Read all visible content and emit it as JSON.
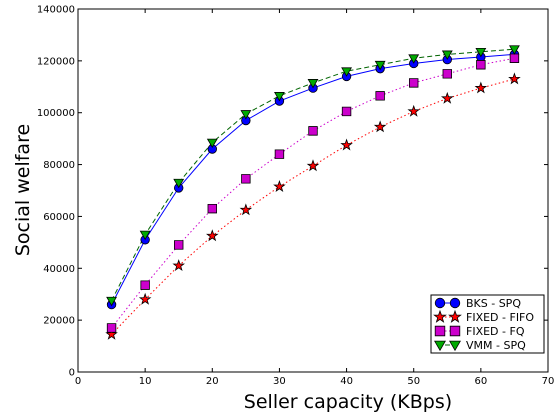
{
  "chart_data": {
    "type": "line",
    "title": "",
    "xlabel": "Seller capacity (KBps)",
    "ylabel": "Social welfare",
    "xlim": [
      0,
      70
    ],
    "ylim": [
      0,
      140000
    ],
    "xticks": [
      0,
      10,
      20,
      30,
      40,
      50,
      60,
      70
    ],
    "yticks": [
      0,
      20000,
      40000,
      60000,
      80000,
      100000,
      120000,
      140000
    ],
    "grid": false,
    "legend_position": "bottom-right",
    "x": [
      5,
      10,
      15,
      20,
      25,
      30,
      35,
      40,
      45,
      50,
      55,
      60,
      65
    ],
    "series": [
      {
        "name": "BKS - SPQ",
        "color": "#0000ff",
        "marker_color": "#0000ff",
        "line_style": "solid",
        "marker": "circle",
        "values": [
          26000,
          51000,
          71000,
          86000,
          97000,
          104500,
          109500,
          114000,
          117000,
          119000,
          120500,
          121500,
          122500
        ]
      },
      {
        "name": "FIXED - FIFO",
        "color": "#ff0000",
        "marker_color": "#ff0000",
        "line_style": "dotted",
        "marker": "star",
        "values": [
          14500,
          28000,
          41000,
          52500,
          62500,
          71500,
          79500,
          87500,
          94500,
          100500,
          105500,
          109500,
          113000
        ]
      },
      {
        "name": "FIXED - FQ",
        "color": "#cc00cc",
        "marker_color": "#cc00cc",
        "line_style": "dotted",
        "marker": "square",
        "values": [
          17000,
          33500,
          49000,
          63000,
          74500,
          84000,
          93000,
          100500,
          106500,
          111500,
          115000,
          118500,
          121000
        ]
      },
      {
        "name": "VMM - SPQ",
        "color": "#006400",
        "marker_color": "#00aa00",
        "line_style": "dashed",
        "marker": "triangle-down",
        "values": [
          27500,
          53000,
          73000,
          88500,
          99500,
          106500,
          111500,
          116000,
          118500,
          121000,
          122500,
          123500,
          124500
        ]
      }
    ]
  }
}
